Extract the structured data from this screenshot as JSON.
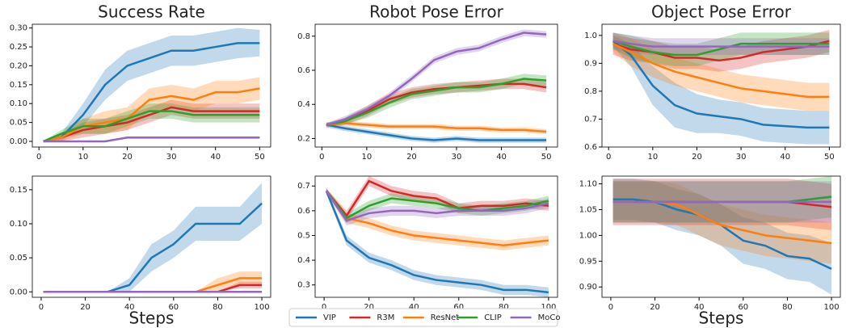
{
  "chart_data": [
    {
      "type": "line",
      "title": "Success Rate",
      "x": [
        1,
        5,
        10,
        15,
        20,
        25,
        30,
        35,
        40,
        45,
        50
      ],
      "xlim": [
        -1.5,
        52.5
      ],
      "xticks": [
        0,
        10,
        20,
        30,
        40,
        50
      ],
      "ylim": [
        -0.015,
        0.31
      ],
      "yticks": [
        {
          "value": 0,
          "label": "0.00"
        },
        0.05,
        {
          "value": 0.1,
          "label": "0.10"
        },
        0.15,
        {
          "value": 0.2,
          "label": "0.20"
        },
        0.25,
        {
          "value": 0.3,
          "label": "0.30"
        }
      ],
      "series": [
        {
          "name": "VIP",
          "color": "#1f77b4",
          "values": [
            0,
            0.01,
            0.07,
            0.15,
            0.2,
            0.22,
            0.24,
            0.24,
            0.25,
            0.26,
            0.26
          ],
          "errors": [
            0,
            0.01,
            0.03,
            0.04,
            0.04,
            0.04,
            0.04,
            0.04,
            0.04,
            0.04,
            0.035
          ]
        },
        {
          "name": "R3M",
          "color": "#d62728",
          "values": [
            0,
            0.01,
            0.03,
            0.04,
            0.05,
            0.07,
            0.09,
            0.08,
            0.08,
            0.08,
            0.08
          ],
          "errors": [
            0,
            0.01,
            0.02,
            0.02,
            0.02,
            0.02,
            0.02,
            0.02,
            0.02,
            0.02,
            0.02
          ]
        },
        {
          "name": "ResNet",
          "color": "#ff7f0e",
          "values": [
            0,
            0.01,
            0.04,
            0.05,
            0.06,
            0.11,
            0.12,
            0.11,
            0.13,
            0.13,
            0.14
          ],
          "errors": [
            0,
            0.01,
            0.02,
            0.03,
            0.03,
            0.03,
            0.03,
            0.03,
            0.03,
            0.03,
            0.03
          ]
        },
        {
          "name": "CLIP",
          "color": "#2ca02c",
          "values": [
            0,
            0.02,
            0.04,
            0.04,
            0.06,
            0.08,
            0.08,
            0.07,
            0.07,
            0.07,
            0.07
          ],
          "errors": [
            0,
            0.01,
            0.02,
            0.02,
            0.02,
            0.02,
            0.02,
            0.02,
            0.02,
            0.02,
            0.02
          ]
        },
        {
          "name": "MoCo",
          "color": "#9467bd",
          "values": [
            0,
            0,
            0,
            0,
            0.01,
            0.01,
            0.01,
            0.01,
            0.01,
            0.01,
            0.01
          ],
          "errors": [
            0,
            0,
            0,
            0,
            0.003,
            0.003,
            0.003,
            0.003,
            0.003,
            0.003,
            0.003
          ]
        }
      ]
    },
    {
      "type": "line",
      "title": "Robot Pose Error",
      "x": [
        1,
        5,
        10,
        15,
        20,
        25,
        30,
        35,
        40,
        45,
        50
      ],
      "xlim": [
        -1.5,
        52.5
      ],
      "xticks": [
        0,
        10,
        20,
        30,
        40,
        50
      ],
      "ylim": [
        0.15,
        0.87
      ],
      "yticks": [
        0.2,
        0.4,
        0.6,
        0.8
      ],
      "series": [
        {
          "name": "VIP",
          "color": "#1f77b4",
          "values": [
            0.28,
            0.26,
            0.24,
            0.22,
            0.2,
            0.19,
            0.2,
            0.19,
            0.19,
            0.19,
            0.19
          ],
          "errors": [
            0.015,
            0.015,
            0.015,
            0.015,
            0.015,
            0.015,
            0.015,
            0.015,
            0.015,
            0.015,
            0.015
          ]
        },
        {
          "name": "R3M",
          "color": "#d62728",
          "values": [
            0.28,
            0.3,
            0.36,
            0.43,
            0.47,
            0.49,
            0.5,
            0.51,
            0.52,
            0.52,
            0.5
          ],
          "errors": [
            0.01,
            0.02,
            0.03,
            0.03,
            0.03,
            0.03,
            0.03,
            0.03,
            0.03,
            0.03,
            0.03
          ]
        },
        {
          "name": "ResNet",
          "color": "#ff7f0e",
          "values": [
            0.28,
            0.29,
            0.28,
            0.27,
            0.27,
            0.27,
            0.26,
            0.26,
            0.25,
            0.25,
            0.24
          ],
          "errors": [
            0.015,
            0.015,
            0.015,
            0.015,
            0.015,
            0.015,
            0.015,
            0.015,
            0.015,
            0.015,
            0.015
          ]
        },
        {
          "name": "CLIP",
          "color": "#2ca02c",
          "values": [
            0.28,
            0.3,
            0.35,
            0.41,
            0.46,
            0.48,
            0.5,
            0.5,
            0.52,
            0.55,
            0.54
          ],
          "errors": [
            0.01,
            0.02,
            0.03,
            0.03,
            0.03,
            0.03,
            0.03,
            0.03,
            0.03,
            0.03,
            0.03
          ]
        },
        {
          "name": "MoCo",
          "color": "#9467bd",
          "values": [
            0.28,
            0.31,
            0.37,
            0.45,
            0.55,
            0.66,
            0.71,
            0.73,
            0.78,
            0.82,
            0.81
          ],
          "errors": [
            0.01,
            0.02,
            0.02,
            0.02,
            0.02,
            0.02,
            0.02,
            0.02,
            0.02,
            0.02,
            0.02
          ]
        }
      ]
    },
    {
      "type": "line",
      "title": "Object Pose Error",
      "x": [
        1,
        5,
        10,
        15,
        20,
        25,
        30,
        35,
        40,
        45,
        50
      ],
      "xlim": [
        -1.5,
        52.5
      ],
      "xticks": [
        0,
        10,
        20,
        30,
        40,
        50
      ],
      "ylim": [
        0.6,
        1.04
      ],
      "yticks": [
        0.6,
        0.7,
        0.8,
        0.9,
        {
          "value": 1,
          "label": "1.0"
        }
      ],
      "series": [
        {
          "name": "VIP",
          "color": "#1f77b4",
          "values": [
            0.98,
            0.93,
            0.82,
            0.75,
            0.72,
            0.71,
            0.7,
            0.68,
            0.675,
            0.67,
            0.67
          ],
          "errors": [
            0.02,
            0.04,
            0.07,
            0.08,
            0.07,
            0.06,
            0.06,
            0.06,
            0.06,
            0.06,
            0.06
          ]
        },
        {
          "name": "R3M",
          "color": "#d62728",
          "values": [
            0.97,
            0.95,
            0.94,
            0.92,
            0.92,
            0.91,
            0.92,
            0.94,
            0.95,
            0.96,
            0.98
          ],
          "errors": [
            0.04,
            0.04,
            0.04,
            0.04,
            0.04,
            0.04,
            0.04,
            0.04,
            0.04,
            0.04,
            0.04
          ]
        },
        {
          "name": "ResNet",
          "color": "#ff7f0e",
          "values": [
            0.97,
            0.94,
            0.9,
            0.87,
            0.85,
            0.83,
            0.81,
            0.8,
            0.79,
            0.78,
            0.78
          ],
          "errors": [
            0.03,
            0.05,
            0.05,
            0.05,
            0.05,
            0.05,
            0.05,
            0.05,
            0.05,
            0.05,
            0.05
          ]
        },
        {
          "name": "CLIP",
          "color": "#2ca02c",
          "values": [
            0.98,
            0.96,
            0.94,
            0.93,
            0.93,
            0.95,
            0.97,
            0.97,
            0.97,
            0.97,
            0.97
          ],
          "errors": [
            0.03,
            0.04,
            0.04,
            0.04,
            0.04,
            0.04,
            0.04,
            0.04,
            0.04,
            0.04,
            0.04
          ]
        },
        {
          "name": "MoCo",
          "color": "#9467bd",
          "values": [
            0.98,
            0.97,
            0.96,
            0.96,
            0.96,
            0.96,
            0.96,
            0.96,
            0.96,
            0.96,
            0.96
          ],
          "errors": [
            0.03,
            0.03,
            0.03,
            0.03,
            0.03,
            0.03,
            0.03,
            0.03,
            0.03,
            0.03,
            0.03
          ]
        }
      ]
    },
    {
      "type": "line",
      "xlabel": "Steps",
      "x": [
        1,
        10,
        20,
        30,
        40,
        50,
        60,
        70,
        80,
        90,
        100
      ],
      "xlim": [
        -4,
        104
      ],
      "xticks": [
        0,
        20,
        40,
        60,
        80,
        100
      ],
      "ylim": [
        -0.008,
        0.17
      ],
      "yticks": [
        {
          "value": 0,
          "label": "0.00"
        },
        0.05,
        {
          "value": 0.1,
          "label": "0.10"
        },
        0.15
      ],
      "series": [
        {
          "name": "VIP",
          "color": "#1f77b4",
          "values": [
            0,
            0,
            0,
            0,
            0.01,
            0.05,
            0.07,
            0.1,
            0.1,
            0.1,
            0.13
          ],
          "errors": [
            0,
            0,
            0,
            0,
            0.01,
            0.02,
            0.02,
            0.025,
            0.025,
            0.025,
            0.03
          ]
        },
        {
          "name": "R3M",
          "color": "#d62728",
          "values": [
            0,
            0,
            0,
            0,
            0,
            0,
            0,
            0,
            0,
            0.01,
            0.01
          ],
          "errors": [
            0,
            0,
            0,
            0,
            0,
            0,
            0,
            0,
            0,
            0.005,
            0.005
          ]
        },
        {
          "name": "ResNet",
          "color": "#ff7f0e",
          "values": [
            0,
            0,
            0,
            0,
            0,
            0,
            0,
            0,
            0.01,
            0.02,
            0.02
          ],
          "errors": [
            0,
            0,
            0,
            0,
            0,
            0,
            0,
            0,
            0.01,
            0.01,
            0.01
          ]
        },
        {
          "name": "CLIP",
          "color": "#2ca02c",
          "values": [
            0,
            0,
            0,
            0,
            0,
            0,
            0,
            0,
            0,
            0,
            0
          ],
          "errors": [
            0,
            0,
            0,
            0,
            0,
            0,
            0,
            0,
            0,
            0,
            0
          ]
        },
        {
          "name": "MoCo",
          "color": "#9467bd",
          "values": [
            0,
            0,
            0,
            0,
            0,
            0,
            0,
            0,
            0,
            0,
            0
          ],
          "errors": [
            0,
            0,
            0,
            0,
            0,
            0,
            0,
            0,
            0,
            0,
            0
          ]
        }
      ]
    },
    {
      "type": "line",
      "legend": "below",
      "x": [
        1,
        10,
        20,
        30,
        40,
        50,
        60,
        70,
        80,
        90,
        100
      ],
      "xlim": [
        -4,
        104
      ],
      "xticks": [
        0,
        20,
        40,
        60,
        80,
        100
      ],
      "ylim": [
        0.25,
        0.74
      ],
      "yticks": [
        0.3,
        0.4,
        0.5,
        0.6,
        0.7
      ],
      "series": [
        {
          "name": "VIP",
          "color": "#1f77b4",
          "values": [
            0.68,
            0.48,
            0.41,
            0.38,
            0.34,
            0.32,
            0.31,
            0.3,
            0.28,
            0.28,
            0.27
          ],
          "errors": [
            0.01,
            0.02,
            0.02,
            0.02,
            0.02,
            0.02,
            0.02,
            0.02,
            0.02,
            0.02,
            0.02
          ]
        },
        {
          "name": "R3M",
          "color": "#d62728",
          "values": [
            0.68,
            0.58,
            0.72,
            0.68,
            0.66,
            0.65,
            0.61,
            0.62,
            0.62,
            0.63,
            0.62
          ],
          "errors": [
            0.01,
            0.02,
            0.02,
            0.02,
            0.02,
            0.02,
            0.02,
            0.02,
            0.02,
            0.02,
            0.02
          ]
        },
        {
          "name": "ResNet",
          "color": "#ff7f0e",
          "values": [
            0.68,
            0.57,
            0.55,
            0.52,
            0.5,
            0.49,
            0.48,
            0.47,
            0.46,
            0.47,
            0.48
          ],
          "errors": [
            0.01,
            0.02,
            0.02,
            0.02,
            0.02,
            0.02,
            0.02,
            0.02,
            0.02,
            0.02,
            0.02
          ]
        },
        {
          "name": "CLIP",
          "color": "#2ca02c",
          "values": [
            0.68,
            0.57,
            0.62,
            0.65,
            0.64,
            0.63,
            0.61,
            0.6,
            0.61,
            0.62,
            0.64
          ],
          "errors": [
            0.01,
            0.02,
            0.02,
            0.02,
            0.02,
            0.02,
            0.02,
            0.02,
            0.02,
            0.02,
            0.02
          ]
        },
        {
          "name": "MoCo",
          "color": "#9467bd",
          "values": [
            0.68,
            0.56,
            0.59,
            0.6,
            0.6,
            0.59,
            0.6,
            0.6,
            0.6,
            0.61,
            0.63
          ],
          "errors": [
            0.01,
            0.02,
            0.02,
            0.02,
            0.02,
            0.02,
            0.02,
            0.02,
            0.02,
            0.02,
            0.02
          ]
        }
      ]
    },
    {
      "type": "line",
      "xlabel": "Steps",
      "x": [
        1,
        10,
        20,
        30,
        40,
        50,
        60,
        70,
        80,
        90,
        100
      ],
      "xlim": [
        -4,
        104
      ],
      "xticks": [
        0,
        20,
        40,
        60,
        80,
        100
      ],
      "ylim": [
        0.88,
        1.115
      ],
      "yticks": [
        {
          "value": 0.9,
          "label": "0.90"
        },
        0.95,
        {
          "value": 1,
          "label": "1.00"
        },
        1.05,
        {
          "value": 1.1,
          "label": "1.10"
        }
      ],
      "series": [
        {
          "name": "VIP",
          "color": "#1f77b4",
          "values": [
            1.07,
            1.07,
            1.065,
            1.05,
            1.04,
            1.02,
            0.99,
            0.98,
            0.96,
            0.955,
            0.935
          ],
          "errors": [
            0.04,
            0.04,
            0.04,
            0.04,
            0.04,
            0.04,
            0.045,
            0.045,
            0.045,
            0.045,
            0.05
          ]
        },
        {
          "name": "R3M",
          "color": "#d62728",
          "values": [
            1.065,
            1.065,
            1.065,
            1.065,
            1.065,
            1.065,
            1.065,
            1.065,
            1.065,
            1.06,
            1.055
          ],
          "errors": [
            0.045,
            0.045,
            0.045,
            0.045,
            0.045,
            0.045,
            0.045,
            0.045,
            0.045,
            0.045,
            0.045
          ]
        },
        {
          "name": "ResNet",
          "color": "#ff7f0e",
          "values": [
            1.065,
            1.065,
            1.065,
            1.06,
            1.04,
            1.02,
            1.01,
            1.0,
            0.995,
            0.99,
            0.985
          ],
          "errors": [
            0.04,
            0.04,
            0.04,
            0.04,
            0.04,
            0.04,
            0.04,
            0.04,
            0.04,
            0.04,
            0.04
          ]
        },
        {
          "name": "CLIP",
          "color": "#2ca02c",
          "values": [
            1.065,
            1.065,
            1.065,
            1.065,
            1.065,
            1.065,
            1.065,
            1.065,
            1.065,
            1.07,
            1.075
          ],
          "errors": [
            0.04,
            0.04,
            0.04,
            0.04,
            0.04,
            0.04,
            0.04,
            0.04,
            0.04,
            0.04,
            0.04
          ]
        },
        {
          "name": "MoCo",
          "color": "#9467bd",
          "values": [
            1.065,
            1.065,
            1.065,
            1.065,
            1.065,
            1.065,
            1.065,
            1.065,
            1.065,
            1.065,
            1.065
          ],
          "errors": [
            0.04,
            0.04,
            0.04,
            0.04,
            0.04,
            0.04,
            0.04,
            0.04,
            0.04,
            0.04,
            0.04
          ]
        }
      ]
    }
  ]
}
